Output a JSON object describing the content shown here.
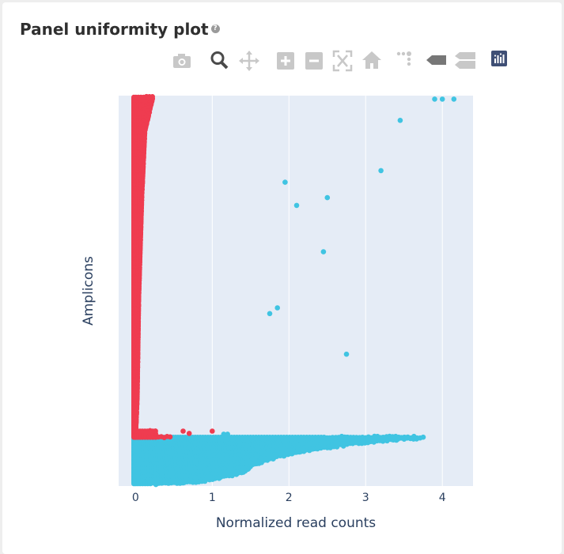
{
  "panel": {
    "title": "Panel uniformity plot",
    "help_glyph": "?"
  },
  "modebar": {
    "icons": [
      "camera-icon",
      "zoom-icon",
      "pan-icon",
      "zoom-in-icon",
      "zoom-out-icon",
      "autoscale-icon",
      "reset-axes-icon",
      "spike-lines-icon",
      "hover-closest-icon",
      "hover-compare-icon",
      "plotly-logo-icon"
    ],
    "active": "zoom-icon",
    "colors": {
      "idle": "#c8c8c8",
      "active": "#4a4a4a",
      "logo": "#3f4f75"
    }
  },
  "chart_data": {
    "type": "scatter",
    "xlabel": "Normalized read counts",
    "ylabel": "Amplicons",
    "xlim": [
      -0.22,
      4.4
    ],
    "xticks": [
      0,
      1,
      2,
      3,
      4
    ],
    "y_tick_labels": false,
    "grid": "vertical",
    "legend": "none",
    "plot_bgcolor": "#e5ecf6",
    "n_amplicons": 10000,
    "series": [
      {
        "color": "#40c4e2",
        "range": [
          0,
          0.12
        ],
        "envelope": [
          [
            0.004,
            0.34
          ],
          [
            0.02,
            0.64
          ],
          [
            0.04,
            0.85
          ],
          [
            0.08,
            0.98
          ],
          [
            0.12,
            1.05
          ],
          [
            0.16,
            1.18
          ],
          [
            0.22,
            1.35
          ],
          [
            0.3,
            1.45
          ],
          [
            0.38,
            1.5
          ],
          [
            0.46,
            1.62
          ],
          [
            0.55,
            1.8
          ],
          [
            0.65,
            2.05
          ],
          [
            0.75,
            2.35
          ],
          [
            0.85,
            2.8
          ],
          [
            0.93,
            3.3
          ],
          [
            0.97,
            3.6
          ],
          [
            0.996,
            3.75
          ]
        ],
        "outliers": [
          [
            4.15,
            0.995
          ],
          [
            4.0,
            0.995
          ],
          [
            3.9,
            0.995
          ],
          [
            3.45,
            0.94
          ],
          [
            3.2,
            0.81
          ],
          [
            2.75,
            0.335
          ],
          [
            2.5,
            0.74
          ],
          [
            2.45,
            0.6
          ],
          [
            2.1,
            0.72
          ],
          [
            1.95,
            0.78
          ],
          [
            1.85,
            0.455
          ],
          [
            1.75,
            0.44
          ],
          [
            1.2,
            0.128
          ],
          [
            1.15,
            0.128
          ]
        ]
      },
      {
        "color": "#ef3c50",
        "range": [
          0.12,
          0.136
        ],
        "envelope": [
          [
            0,
            0.45
          ],
          [
            0.002,
            0.38
          ],
          [
            0.006,
            0.32
          ],
          [
            0.01,
            0.26
          ]
        ],
        "outliers": [
          [
            1.0,
            0.136
          ],
          [
            0.7,
            0.13
          ],
          [
            0.62,
            0.136
          ]
        ]
      },
      {
        "color": "#ef3c50",
        "range": [
          0.136,
          1
        ],
        "envelope": [
          [
            0.004,
            0.003
          ],
          [
            0.1,
            0.02
          ],
          [
            0.4,
            0.04
          ],
          [
            0.7,
            0.08
          ],
          [
            0.9,
            0.12
          ],
          [
            0.995,
            0.22
          ]
        ],
        "outliers": []
      }
    ]
  }
}
